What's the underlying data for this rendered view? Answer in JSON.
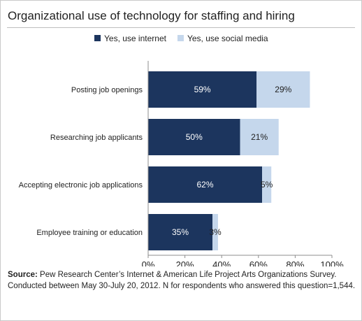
{
  "chart_data": {
    "type": "bar",
    "orientation": "horizontal",
    "stacked": true,
    "title": "Organizational use of technology for staffing and hiring",
    "categories": [
      "Posting job openings",
      "Researching job applicants",
      "Accepting electronic job applications",
      "Employee training or education"
    ],
    "series": [
      {
        "name": "Yes, use internet",
        "values": [
          59,
          50,
          62,
          35
        ],
        "labels": [
          "59%",
          "50%",
          "62%",
          "35%"
        ],
        "color": "#1c355e"
      },
      {
        "name": "Yes, use social media",
        "values": [
          29,
          21,
          5,
          3
        ],
        "labels": [
          "29%",
          "21%",
          "5%",
          "3%"
        ],
        "color": "#c5d7ec"
      }
    ],
    "xlim": [
      0,
      100
    ],
    "xticks": [
      0,
      20,
      40,
      60,
      80,
      100
    ],
    "xtick_labels": [
      "0%",
      "20%",
      "40%",
      "60%",
      "80%",
      "100%"
    ],
    "legend_position": "top",
    "grid": false
  },
  "source": {
    "label": "Source:",
    "text": "Pew Research Center’s Internet & American Life Project Arts Organizations Survey. Conducted between May 30-July 20, 2012. N for respondents who answered this question=1,544."
  }
}
